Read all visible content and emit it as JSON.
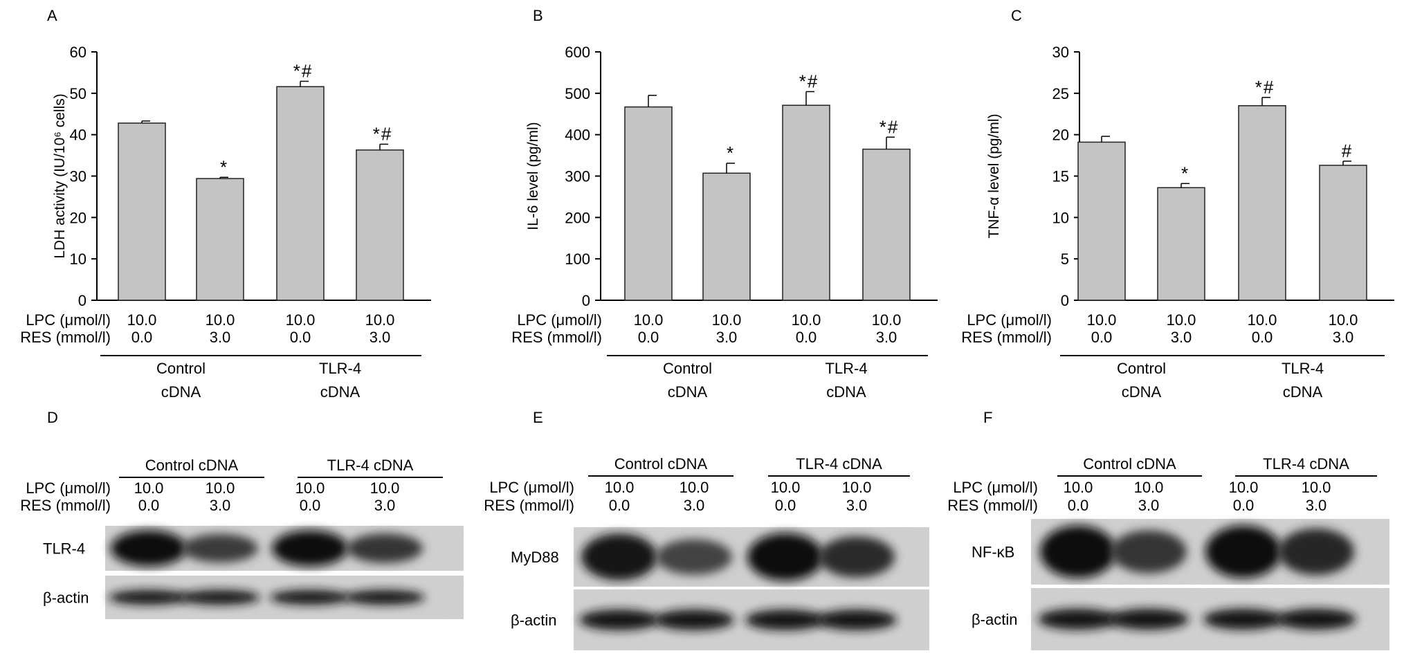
{
  "chart_data": [
    {
      "panel": "A",
      "type": "bar",
      "ylabel": "LDH activity (IU/10⁶ cells)",
      "ylim": [
        0,
        60
      ],
      "yticks": [
        0,
        10,
        20,
        30,
        40,
        50,
        60
      ],
      "values": [
        42.8,
        29.4,
        51.6,
        36.3
      ],
      "errors": [
        0.5,
        0.3,
        1.3,
        1.4
      ],
      "marks": [
        "",
        "*",
        "*#",
        "*#"
      ],
      "row_labels": [
        "LPC (μmol/l)",
        "RES (mmol/l)"
      ],
      "lpc": [
        "10.0",
        "10.0",
        "10.0",
        "10.0"
      ],
      "res": [
        "0.0",
        "3.0",
        "0.0",
        "3.0"
      ],
      "groups": [
        {
          "line1": "Control",
          "line2": "cDNA"
        },
        {
          "line1": "TLR-4",
          "line2": "cDNA"
        }
      ]
    },
    {
      "panel": "B",
      "type": "bar",
      "ylabel": "IL-6 level (pg/ml)",
      "ylim": [
        0,
        600
      ],
      "yticks": [
        0,
        100,
        200,
        300,
        400,
        500,
        600
      ],
      "values": [
        467,
        307,
        471,
        365
      ],
      "errors": [
        28,
        24,
        33,
        29
      ],
      "marks": [
        "",
        "*",
        "*#",
        "*#"
      ],
      "row_labels": [
        "LPC (μmol/l)",
        "RES (mmol/l)"
      ],
      "lpc": [
        "10.0",
        "10.0",
        "10.0",
        "10.0"
      ],
      "res": [
        "0.0",
        "3.0",
        "0.0",
        "3.0"
      ],
      "groups": [
        {
          "line1": "Control",
          "line2": "cDNA"
        },
        {
          "line1": "TLR-4",
          "line2": "cDNA"
        }
      ]
    },
    {
      "panel": "C",
      "type": "bar",
      "ylabel": "TNF-α level (pg/ml)",
      "ylim": [
        0,
        30
      ],
      "yticks": [
        0,
        5,
        10,
        15,
        20,
        25,
        30
      ],
      "values": [
        19.1,
        13.6,
        23.5,
        16.3
      ],
      "errors": [
        0.7,
        0.5,
        1.0,
        0.5
      ],
      "marks": [
        "",
        "*",
        "*#",
        "#"
      ],
      "row_labels": [
        "LPC (μmol/l)",
        "RES (mmol/l)"
      ],
      "lpc": [
        "10.0",
        "10.0",
        "10.0",
        "10.0"
      ],
      "res": [
        "0.0",
        "3.0",
        "0.0",
        "3.0"
      ],
      "groups": [
        {
          "line1": "Control",
          "line2": "cDNA"
        },
        {
          "line1": "TLR-4",
          "line2": "cDNA"
        }
      ]
    }
  ],
  "blots": [
    {
      "panel": "D",
      "groups": [
        "Control cDNA",
        "TLR-4 cDNA"
      ],
      "row_labels": [
        "LPC (μmol/l)",
        "RES (mmol/l)"
      ],
      "lpc": [
        "10.0",
        "10.0",
        "10.0",
        "10.0"
      ],
      "res": [
        "0.0",
        "3.0",
        "0.0",
        "3.0"
      ],
      "proteins": [
        "TLR-4",
        "β-actin"
      ],
      "band_intensity": [
        [
          1.0,
          0.55,
          1.0,
          0.6
        ],
        [
          0.9,
          0.9,
          0.9,
          0.9
        ]
      ]
    },
    {
      "panel": "E",
      "groups": [
        "Control cDNA",
        "TLR-4 cDNA"
      ],
      "row_labels": [
        "LPC (μmol/l)",
        "RES (mmol/l)"
      ],
      "lpc": [
        "10.0",
        "10.0",
        "10.0",
        "10.0"
      ],
      "res": [
        "0.0",
        "3.0",
        "0.0",
        "3.0"
      ],
      "proteins": [
        "MyD88",
        "β-actin"
      ],
      "band_intensity": [
        [
          0.95,
          0.45,
          1.0,
          0.7
        ],
        [
          0.9,
          0.9,
          0.9,
          0.9
        ]
      ]
    },
    {
      "panel": "F",
      "groups": [
        "Control cDNA",
        "TLR-4 cDNA"
      ],
      "row_labels": [
        "LPC (μmol/l)",
        "RES (mmol/l)"
      ],
      "lpc": [
        "10.0",
        "10.0",
        "10.0",
        "10.0"
      ],
      "res": [
        "0.0",
        "3.0",
        "0.0",
        "3.0"
      ],
      "proteins": [
        "NF-κB",
        "β-actin"
      ],
      "band_intensity": [
        [
          1.0,
          0.6,
          1.0,
          0.75
        ],
        [
          0.9,
          0.9,
          0.9,
          0.9
        ]
      ]
    }
  ]
}
